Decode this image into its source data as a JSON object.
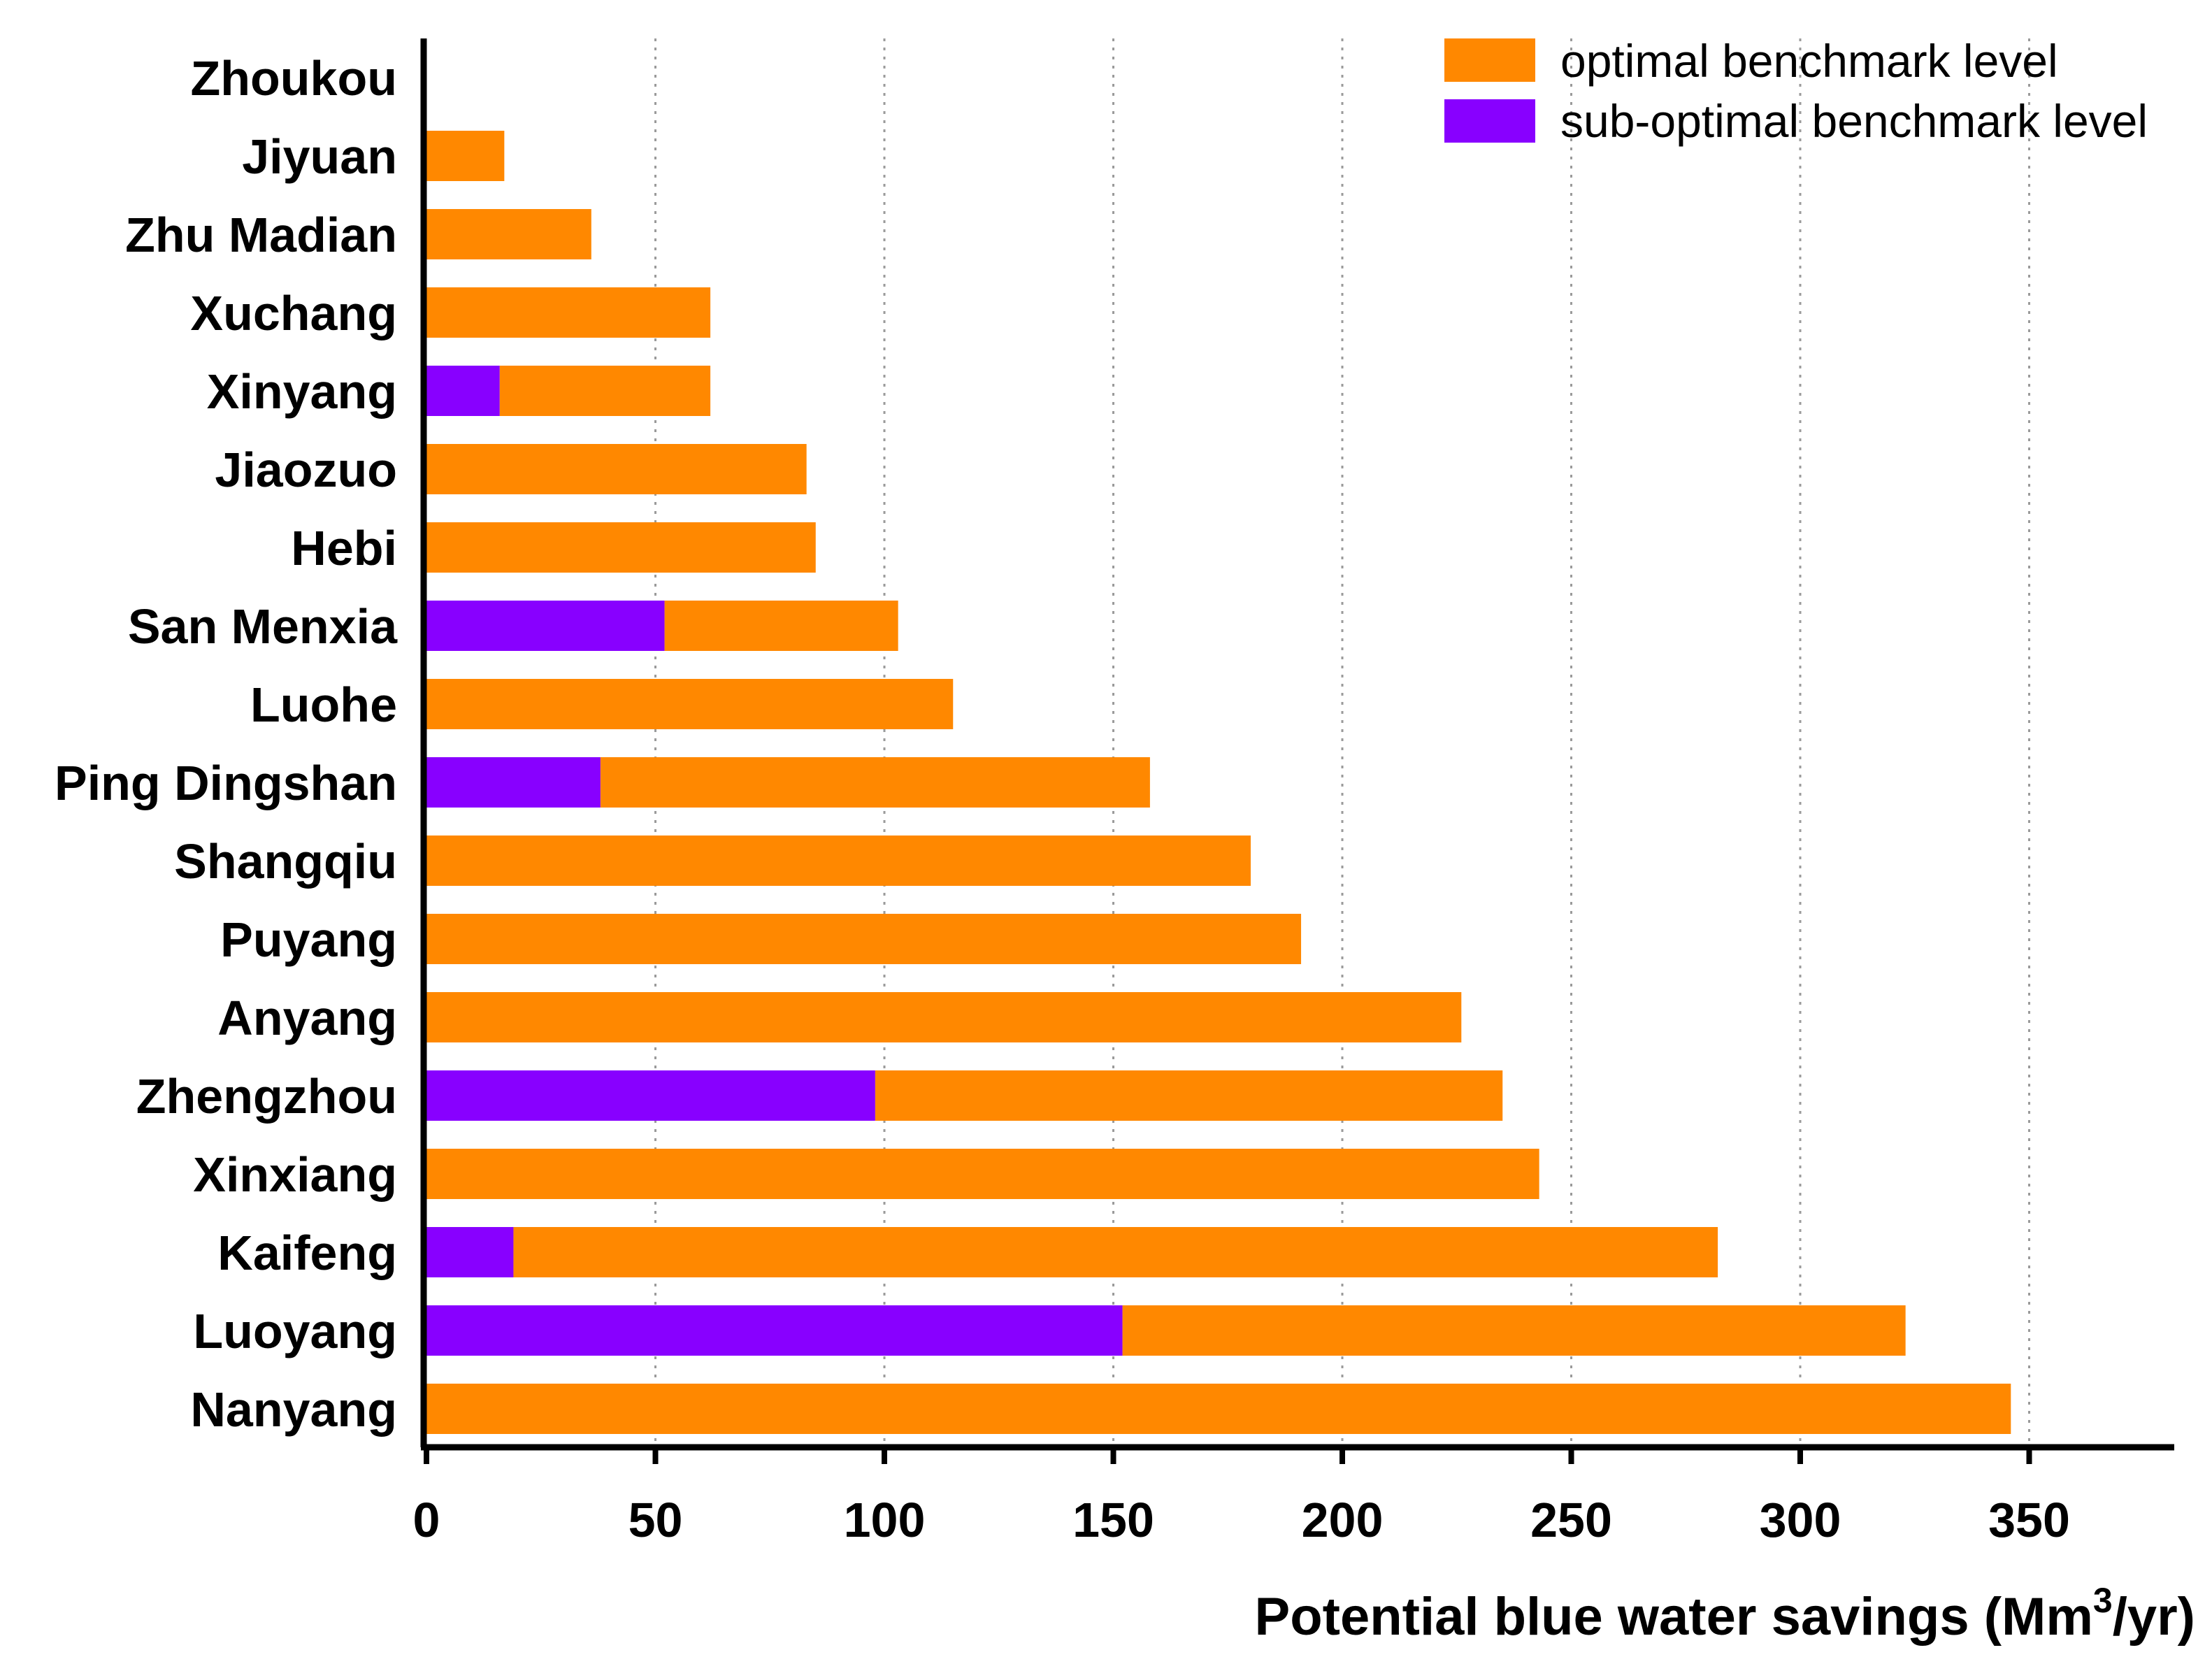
{
  "chart_data": {
    "type": "bar",
    "orientation": "horizontal",
    "stacked": true,
    "categories": [
      "Zhoukou",
      "Jiyuan",
      "Zhu Madian",
      "Xuchang",
      "Xinyang",
      "Jiaozuo",
      "Hebi",
      "San Menxia",
      "Luohe",
      "Ping Dingshan",
      "Shangqiu",
      "Puyang",
      "Anyang",
      "Zhengzhou",
      "Xinxiang",
      "Kaifeng",
      "Luoyang",
      "Nanyang"
    ],
    "series": [
      {
        "name": "sub-optimal benchmark level",
        "color": "#8800ff",
        "values": [
          0,
          0,
          0,
          0,
          16,
          0,
          0,
          52,
          0,
          38,
          0,
          0,
          0,
          98,
          0,
          19,
          152,
          0
        ]
      },
      {
        "name": "optimal benchmark level",
        "color": "#ff8800",
        "values": [
          0,
          17,
          36,
          62,
          46,
          83,
          85,
          51,
          115,
          120,
          180,
          191,
          226,
          137,
          243,
          263,
          171,
          346
        ]
      }
    ],
    "xlabel": {
      "prefix": "Potential blue water savings (Mm",
      "superscript": "3",
      "suffix": "/yr)"
    },
    "xlim": [
      0,
      380
    ],
    "xticks": [
      "0",
      "50",
      "100",
      "150",
      "200",
      "250",
      "300",
      "350"
    ],
    "tick_values": [
      0,
      50,
      100,
      150,
      200,
      250,
      300,
      350
    ],
    "gridlines": "vertical dotted",
    "legend": {
      "placement": "top-right",
      "entries": [
        {
          "label": "optimal benchmark level",
          "color": "#ff8800"
        },
        {
          "label": "sub-optimal benchmark level",
          "color": "#8800ff"
        }
      ]
    }
  }
}
